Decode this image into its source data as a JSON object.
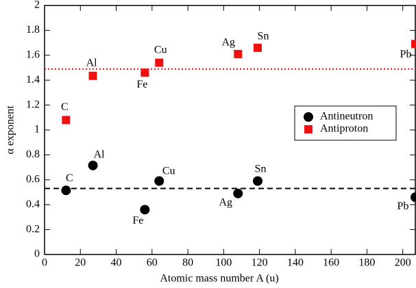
{
  "chart_data": {
    "type": "scatter",
    "xlabel": "Atomic mass number A (u)",
    "ylabel": "α exponent",
    "xlim": [
      0,
      207
    ],
    "ylim": [
      0,
      2
    ],
    "xticks": [
      0,
      20,
      40,
      60,
      80,
      100,
      120,
      140,
      160,
      180,
      200
    ],
    "yticks": [
      0,
      0.2,
      0.4,
      0.6,
      0.8,
      1,
      1.2,
      1.4,
      1.6,
      1.8,
      2
    ],
    "legend": "right",
    "series": [
      {
        "name": "Antineutron",
        "color": "#000000",
        "marker": "circle",
        "x": [
          12,
          27,
          56,
          64,
          108,
          119,
          207
        ],
        "values": [
          0.515,
          0.715,
          0.36,
          0.59,
          0.49,
          0.59,
          0.46
        ],
        "labels": [
          "C",
          "Al",
          "Fe",
          "Cu",
          "Ag",
          "Sn",
          "Pb"
        ]
      },
      {
        "name": "Antiproton",
        "color": "#ee1111",
        "marker": "square",
        "x": [
          12,
          27,
          56,
          64,
          108,
          119,
          207
        ],
        "values": [
          1.08,
          1.435,
          1.46,
          1.54,
          1.61,
          1.66,
          1.69
        ],
        "labels": [
          "C",
          "Al",
          "Fe",
          "Cu",
          "Ag",
          "Sn",
          "Pb"
        ]
      }
    ],
    "hlines": [
      {
        "value": 0.53,
        "color": "#000000",
        "style": "dashed"
      },
      {
        "value": 1.49,
        "color": "#ee1111",
        "style": "dotted"
      }
    ]
  }
}
